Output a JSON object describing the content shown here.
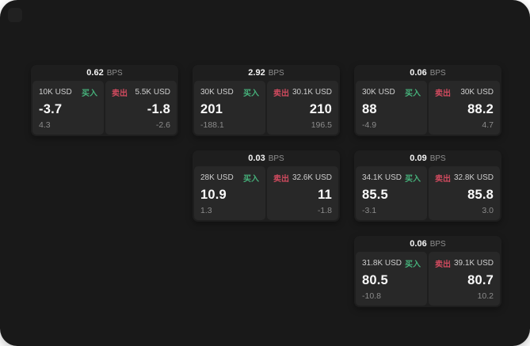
{
  "colors": {
    "page_background": "#191919",
    "card_background": "#1e1e1e",
    "panel_background": "#282828",
    "buy_accent": "#46b07a",
    "sell_accent": "#cf4a5e"
  },
  "icons": {
    "app_logo": "rounded-square"
  },
  "cards": [
    {
      "spread": "0.62",
      "unit": "BPS",
      "buy": {
        "amount": "10K USD",
        "side": "买入",
        "price": "-3.7",
        "delta": "4.3"
      },
      "sell": {
        "side": "卖出",
        "amount": "5.5K USD",
        "price": "-1.8",
        "delta": "-2.6"
      }
    },
    {
      "spread": "2.92",
      "unit": "BPS",
      "buy": {
        "amount": "30K USD",
        "side": "买入",
        "price": "201",
        "delta": "-188.1"
      },
      "sell": {
        "side": "卖出",
        "amount": "30.1K USD",
        "price": "210",
        "delta": "196.5"
      }
    },
    {
      "spread": "0.06",
      "unit": "BPS",
      "buy": {
        "amount": "30K USD",
        "side": "买入",
        "price": "88",
        "delta": "-4.9"
      },
      "sell": {
        "side": "卖出",
        "amount": "30K USD",
        "price": "88.2",
        "delta": "4.7"
      }
    },
    {
      "spread": "0.03",
      "unit": "BPS",
      "buy": {
        "amount": "28K USD",
        "side": "买入",
        "price": "10.9",
        "delta": "1.3"
      },
      "sell": {
        "side": "卖出",
        "amount": "32.6K USD",
        "price": "11",
        "delta": "-1.8"
      }
    },
    {
      "spread": "0.09",
      "unit": "BPS",
      "buy": {
        "amount": "34.1K USD",
        "side": "买入",
        "price": "85.5",
        "delta": "-3.1"
      },
      "sell": {
        "side": "卖出",
        "amount": "32.8K USD",
        "price": "85.8",
        "delta": "3.0"
      }
    },
    {
      "spread": "0.06",
      "unit": "BPS",
      "buy": {
        "amount": "31.8K USD",
        "side": "买入",
        "price": "80.5",
        "delta": "-10.8"
      },
      "sell": {
        "side": "卖出",
        "amount": "39.1K USD",
        "price": "80.7",
        "delta": "10.2"
      }
    }
  ]
}
